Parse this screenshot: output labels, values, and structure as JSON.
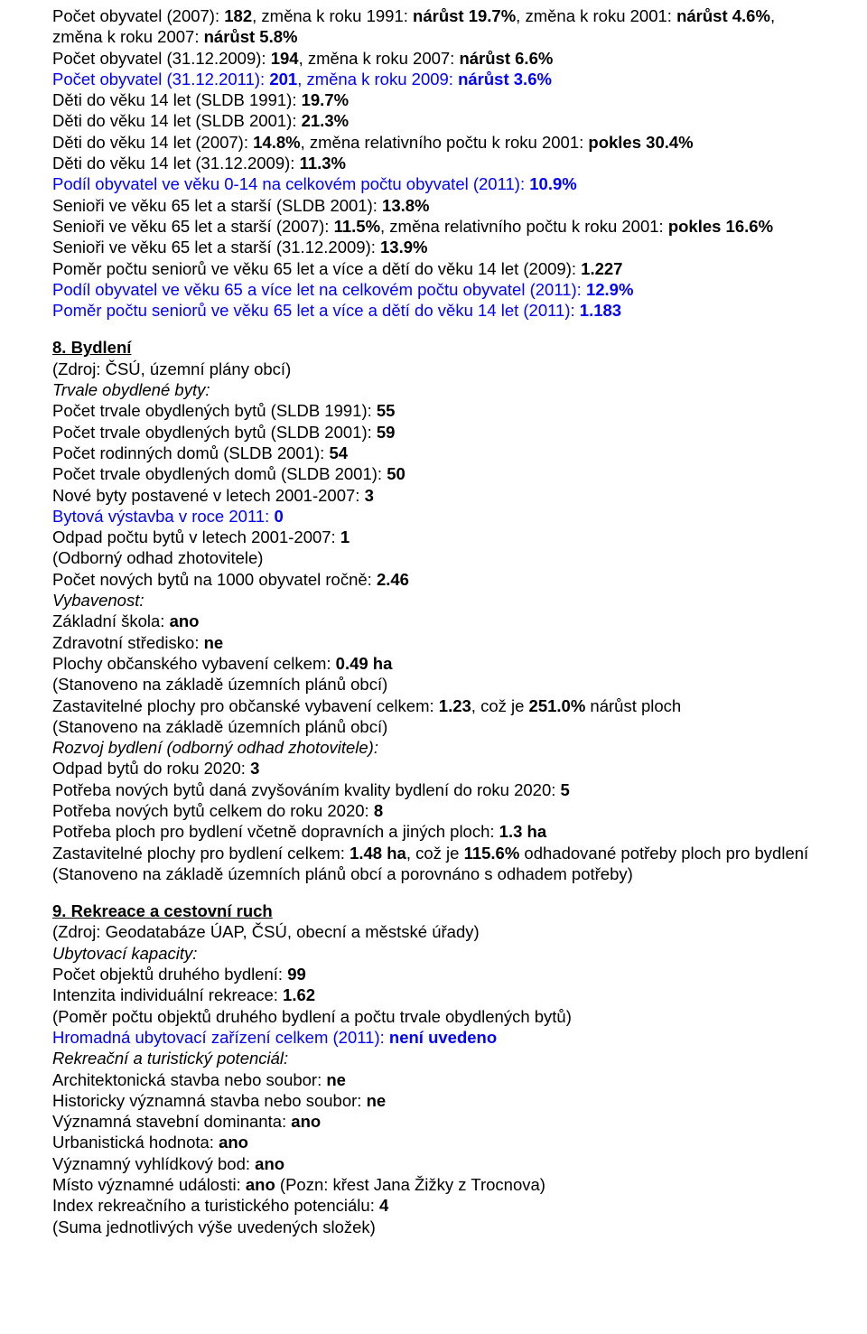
{
  "pop": {
    "l1a": "Počet obyvatel (2007): ",
    "l1b": "182",
    "l1c": ", změna k roku 1991: ",
    "l1d": "nárůst 19.7%",
    "l1e": ", změna k roku 2001: ",
    "l1f": "nárůst 4.6%",
    "l1g": ",",
    "l2a": "změna k roku 2007: ",
    "l2b": "nárůst 5.8%",
    "l3a": "Počet obyvatel (31.12.2009): ",
    "l3b": "194",
    "l3c": ", změna k roku 2007: ",
    "l3d": "nárůst 6.6%",
    "l4a": "Počet obyvatel (31.12.2011): ",
    "l4b": "201",
    "l4c": ", změna k roku 2009: ",
    "l4d": "nárůst 3.6%",
    "l5a": "Děti do věku 14 let (SLDB 1991): ",
    "l5b": "19.7%",
    "l6a": "Děti do věku 14 let (SLDB 2001): ",
    "l6b": "21.3%",
    "l7a": "Děti do věku 14 let (2007): ",
    "l7b": "14.8%",
    "l7c": ", změna relativního počtu k roku 2001: ",
    "l7d": "pokles 30.4%",
    "l8a": "Děti do věku 14 let (31.12.2009): ",
    "l8b": "11.3%",
    "l9a": "Podíl obyvatel ve věku 0-14 na celkovém počtu obyvatel (2011): ",
    "l9b": "10.9%",
    "l10a": "Senioři ve věku 65 let a starší (SLDB 2001): ",
    "l10b": "13.8%",
    "l11a": "Senioři ve věku 65 let a starší (2007): ",
    "l11b": "11.5%",
    "l11c": ", změna relativního počtu k roku 2001: ",
    "l11d": "pokles 16.6%",
    "l12a": "Senioři ve věku 65 let a starší (31.12.2009): ",
    "l12b": "13.9%",
    "l13a": "Poměr počtu seniorů ve věku 65 let a více a dětí do věku 14 let (2009): ",
    "l13b": "1.227",
    "l14a": "Podíl obyvatel ve věku 65 a více let na celkovém počtu obyvatel (2011): ",
    "l14b": "12.9%",
    "l15a": "Poměr počtu seniorů ve věku 65 let a více a dětí do věku 14 let (2011): ",
    "l15b": "1.183"
  },
  "s8": {
    "title": "8. Bydlení",
    "src": "(Zdroj: ČSÚ, územní plány obcí)",
    "sub1": "Trvale obydlené byty:",
    "l1a": "Počet trvale obydlených bytů (SLDB 1991): ",
    "l1b": "55",
    "l2a": "Počet trvale obydlených bytů (SLDB 2001): ",
    "l2b": "59",
    "l3a": "Počet rodinných domů (SLDB 2001): ",
    "l3b": "54",
    "l4a": "Počet trvale obydlených domů (SLDB 2001): ",
    "l4b": "50",
    "l5a": "Nové byty postavené v letech 2001-2007: ",
    "l5b": "3",
    "l6a": "Bytová výstavba v roce 2011: ",
    "l6b": "0",
    "l7a": "Odpad počtu bytů v letech 2001-2007: ",
    "l7b": "1",
    "l8": "(Odborný odhad zhotovitele)",
    "l9a": "Počet nových bytů na 1000 obyvatel ročně: ",
    "l9b": "2.46",
    "sub2": "Vybavenost:",
    "l10a": "Základní škola: ",
    "l10b": "ano",
    "l11a": "Zdravotní středisko: ",
    "l11b": "ne",
    "l12a": "Plochy občanského vybavení celkem: ",
    "l12b": "0.49 ha",
    "l13": "(Stanoveno na základě územních plánů obcí)",
    "l14a": "Zastavitelné plochy pro občanské vybavení celkem: ",
    "l14b": "1.23",
    "l14c": ", což je ",
    "l14d": "251.0%",
    "l14e": " nárůst ploch",
    "l15": "(Stanoveno na základě územních plánů obcí)",
    "sub3": "Rozvoj bydlení (odborný odhad zhotovitele):",
    "l16a": "Odpad bytů do roku 2020: ",
    "l16b": "3",
    "l17a": "Potřeba nových bytů daná zvyšováním kvality bydlení do roku 2020: ",
    "l17b": "5",
    "l18a": "Potřeba nových bytů celkem do roku 2020: ",
    "l18b": "8",
    "l19a": "Potřeba ploch pro bydlení včetně dopravních a jiných ploch: ",
    "l19b": "1.3 ha",
    "l20a": "Zastavitelné plochy pro bydlení celkem: ",
    "l20b": "1.48 ha",
    "l20c": ", což je ",
    "l20d": "115.6%",
    "l20e": " odhadované potřeby ploch pro bydlení",
    "l21": "(Stanoveno na základě územních plánů obcí a porovnáno s odhadem potřeby)"
  },
  "s9": {
    "title": "9. Rekreace a cestovní ruch",
    "src": "(Zdroj: Geodatabáze ÚAP, ČSÚ, obecní a městské úřady)",
    "sub1": "Ubytovací kapacity:",
    "l1a": "Počet objektů druhého bydlení: ",
    "l1b": "99",
    "l2a": "Intenzita individuální rekreace: ",
    "l2b": "1.62",
    "l3": "(Poměr počtu objektů druhého bydlení a počtu trvale obydlených bytů)",
    "l4a": "Hromadná ubytovací zařízení celkem (2011): ",
    "l4b": "není uvedeno",
    "sub2": "Rekreační a turistický potenciál:",
    "l5a": "Architektonická stavba nebo soubor: ",
    "l5b": "ne",
    "l6a": "Historicky významná stavba nebo soubor: ",
    "l6b": "ne",
    "l7a": "Významná stavební dominanta: ",
    "l7b": "ano",
    "l8a": "Urbanistická hodnota: ",
    "l8b": "ano",
    "l9a": "Významný vyhlídkový bod: ",
    "l9b": "ano",
    "l10a": "Místo významné události: ",
    "l10b": "ano",
    "l10c": " (Pozn: křest Jana Žižky z Trocnova)",
    "l11a": "Index rekreačního a turistického potenciálu: ",
    "l11b": "4",
    "l12": "(Suma jednotlivých výše uvedených složek)"
  }
}
